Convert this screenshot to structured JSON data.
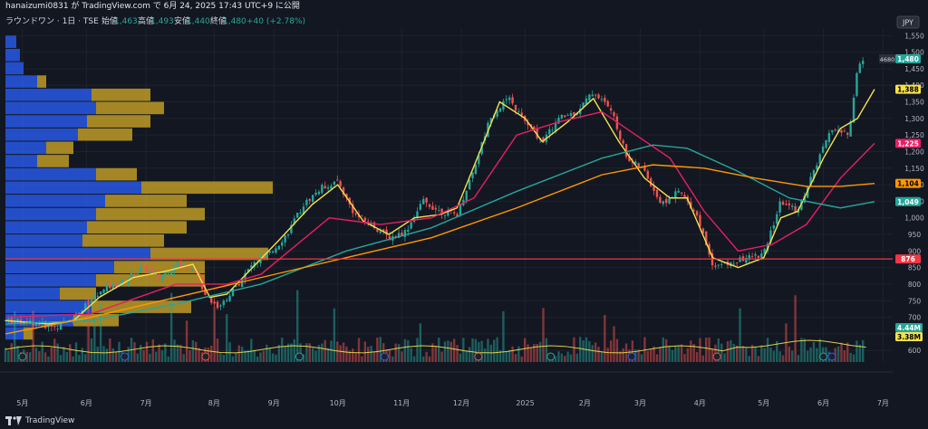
{
  "header": {
    "title_line": "hanaizumi0831 が TradingView.com で 6月 24, 2025 17:43 UTC+9 に公開",
    "symbol_line": "ラウンドワン · 1日 · TSE",
    "ohlc": {
      "open_label": "始値",
      "open": "1,463",
      "high_label": "高値",
      "high": "1,493",
      "low_label": "安値",
      "low": "1,440",
      "close_label": "終値",
      "close": "1,480",
      "change": "+40 (+2.78%)"
    },
    "currency": "JPY"
  },
  "footer": {
    "brand": "TradingView"
  },
  "colors": {
    "bg": "#131722",
    "grid": "#1e222d",
    "up": "#26a69a",
    "down": "#ef5350",
    "ma_short": "#f5e14b",
    "ma_mid": "#e91e63",
    "ma_long": "#26a69a",
    "ma_vlong": "#ff9800",
    "vp_blue": "#2962ff",
    "vp_gold": "#c9a227",
    "hline": "#f23645"
  },
  "chart_data": {
    "type": "candlestick",
    "y_axis": {
      "min": 565,
      "max": 1570,
      "ticks": [
        600,
        650,
        700,
        750,
        800,
        850,
        900,
        950,
        1000,
        1050,
        1100,
        1150,
        1200,
        1250,
        1300,
        1350,
        1400,
        1450,
        1500,
        1550
      ],
      "tick_labels": [
        "600",
        "650",
        "700",
        "750",
        "800",
        "850",
        "900",
        "950",
        "1,000",
        "1,050",
        "1,100",
        "1,150",
        "1,200",
        "1,250",
        "1,300",
        "1,350",
        "1,400",
        "1,450",
        "1,500",
        "1,550"
      ]
    },
    "x_axis": {
      "labels": [
        {
          "t": 0.02,
          "label": "5月"
        },
        {
          "t": 0.095,
          "label": "6月"
        },
        {
          "t": 0.165,
          "label": "7月"
        },
        {
          "t": 0.245,
          "label": "8月"
        },
        {
          "t": 0.315,
          "label": "9月"
        },
        {
          "t": 0.39,
          "label": "10月"
        },
        {
          "t": 0.465,
          "label": "11月"
        },
        {
          "t": 0.535,
          "label": "12月"
        },
        {
          "t": 0.61,
          "label": "2025"
        },
        {
          "t": 0.68,
          "label": "2月"
        },
        {
          "t": 0.745,
          "label": "3月"
        },
        {
          "t": 0.815,
          "label": "4月"
        },
        {
          "t": 0.89,
          "label": "5月"
        },
        {
          "t": 0.96,
          "label": "6月"
        },
        {
          "t": 1.03,
          "label": "7月"
        }
      ]
    },
    "close_path": [
      [
        0,
        690
      ],
      [
        0.03,
        685
      ],
      [
        0.06,
        670
      ],
      [
        0.08,
        700
      ],
      [
        0.1,
        750
      ],
      [
        0.12,
        790
      ],
      [
        0.14,
        810
      ],
      [
        0.16,
        850
      ],
      [
        0.18,
        820
      ],
      [
        0.2,
        860
      ],
      [
        0.22,
        850
      ],
      [
        0.235,
        770
      ],
      [
        0.25,
        730
      ],
      [
        0.27,
        790
      ],
      [
        0.29,
        860
      ],
      [
        0.31,
        890
      ],
      [
        0.33,
        950
      ],
      [
        0.35,
        1040
      ],
      [
        0.37,
        1090
      ],
      [
        0.39,
        1110
      ],
      [
        0.41,
        1010
      ],
      [
        0.43,
        980
      ],
      [
        0.45,
        940
      ],
      [
        0.47,
        960
      ],
      [
        0.49,
        1050
      ],
      [
        0.51,
        1020
      ],
      [
        0.53,
        1010
      ],
      [
        0.55,
        1150
      ],
      [
        0.57,
        1310
      ],
      [
        0.59,
        1360
      ],
      [
        0.61,
        1290
      ],
      [
        0.63,
        1230
      ],
      [
        0.65,
        1300
      ],
      [
        0.67,
        1320
      ],
      [
        0.69,
        1380
      ],
      [
        0.71,
        1330
      ],
      [
        0.73,
        1180
      ],
      [
        0.75,
        1140
      ],
      [
        0.77,
        1040
      ],
      [
        0.79,
        1080
      ],
      [
        0.81,
        1020
      ],
      [
        0.83,
        860
      ],
      [
        0.85,
        860
      ],
      [
        0.87,
        880
      ],
      [
        0.89,
        890
      ],
      [
        0.91,
        1050
      ],
      [
        0.93,
        1020
      ],
      [
        0.95,
        1150
      ],
      [
        0.97,
        1270
      ],
      [
        0.99,
        1250
      ],
      [
        1.0,
        1460
      ],
      [
        1.01,
        1480
      ]
    ],
    "moving_averages": [
      {
        "color_key": "ma_short",
        "points": [
          [
            0,
            690
          ],
          [
            0.05,
            680
          ],
          [
            0.08,
            690
          ],
          [
            0.11,
            760
          ],
          [
            0.15,
            820
          ],
          [
            0.19,
            840
          ],
          [
            0.22,
            860
          ],
          [
            0.24,
            760
          ],
          [
            0.26,
            770
          ],
          [
            0.29,
            850
          ],
          [
            0.32,
            930
          ],
          [
            0.36,
            1040
          ],
          [
            0.39,
            1100
          ],
          [
            0.42,
            990
          ],
          [
            0.45,
            950
          ],
          [
            0.48,
            1000
          ],
          [
            0.51,
            1010
          ],
          [
            0.53,
            1030
          ],
          [
            0.56,
            1220
          ],
          [
            0.58,
            1350
          ],
          [
            0.61,
            1300
          ],
          [
            0.63,
            1230
          ],
          [
            0.66,
            1290
          ],
          [
            0.69,
            1360
          ],
          [
            0.72,
            1230
          ],
          [
            0.75,
            1120
          ],
          [
            0.78,
            1060
          ],
          [
            0.8,
            1060
          ],
          [
            0.83,
            880
          ],
          [
            0.86,
            850
          ],
          [
            0.89,
            880
          ],
          [
            0.91,
            1000
          ],
          [
            0.93,
            1020
          ],
          [
            0.96,
            1180
          ],
          [
            0.98,
            1270
          ],
          [
            1.0,
            1300
          ],
          [
            1.02,
            1388
          ]
        ]
      },
      {
        "color_key": "ma_mid",
        "points": [
          [
            0,
            700
          ],
          [
            0.1,
            710
          ],
          [
            0.2,
            800
          ],
          [
            0.26,
            800
          ],
          [
            0.3,
            830
          ],
          [
            0.38,
            1000
          ],
          [
            0.44,
            980
          ],
          [
            0.5,
            1000
          ],
          [
            0.55,
            1060
          ],
          [
            0.6,
            1250
          ],
          [
            0.65,
            1290
          ],
          [
            0.7,
            1320
          ],
          [
            0.74,
            1250
          ],
          [
            0.78,
            1180
          ],
          [
            0.82,
            1020
          ],
          [
            0.86,
            900
          ],
          [
            0.9,
            920
          ],
          [
            0.94,
            980
          ],
          [
            0.98,
            1120
          ],
          [
            1.02,
            1225
          ]
        ]
      },
      {
        "color_key": "ma_long",
        "points": [
          [
            0,
            680
          ],
          [
            0.1,
            690
          ],
          [
            0.2,
            740
          ],
          [
            0.3,
            800
          ],
          [
            0.4,
            900
          ],
          [
            0.5,
            970
          ],
          [
            0.6,
            1080
          ],
          [
            0.7,
            1180
          ],
          [
            0.76,
            1220
          ],
          [
            0.8,
            1210
          ],
          [
            0.86,
            1140
          ],
          [
            0.92,
            1060
          ],
          [
            0.98,
            1030
          ],
          [
            1.02,
            1049
          ]
        ]
      },
      {
        "color_key": "ma_vlong",
        "points": [
          [
            0,
            650
          ],
          [
            0.1,
            700
          ],
          [
            0.2,
            760
          ],
          [
            0.3,
            820
          ],
          [
            0.4,
            880
          ],
          [
            0.5,
            940
          ],
          [
            0.6,
            1030
          ],
          [
            0.7,
            1130
          ],
          [
            0.76,
            1160
          ],
          [
            0.82,
            1150
          ],
          [
            0.88,
            1120
          ],
          [
            0.94,
            1095
          ],
          [
            0.98,
            1095
          ],
          [
            1.02,
            1104
          ]
        ]
      }
    ],
    "horizontal_line": 876,
    "volume_profile": [
      {
        "p": 1530,
        "blue": 12,
        "gold": 0
      },
      {
        "p": 1490,
        "blue": 16,
        "gold": 0
      },
      {
        "p": 1450,
        "blue": 20,
        "gold": 0
      },
      {
        "p": 1410,
        "blue": 35,
        "gold": 10
      },
      {
        "p": 1370,
        "blue": 95,
        "gold": 65
      },
      {
        "p": 1330,
        "blue": 100,
        "gold": 75
      },
      {
        "p": 1290,
        "blue": 90,
        "gold": 70
      },
      {
        "p": 1250,
        "blue": 80,
        "gold": 60
      },
      {
        "p": 1210,
        "blue": 45,
        "gold": 30
      },
      {
        "p": 1170,
        "blue": 35,
        "gold": 35
      },
      {
        "p": 1130,
        "blue": 100,
        "gold": 45
      },
      {
        "p": 1090,
        "blue": 150,
        "gold": 145
      },
      {
        "p": 1050,
        "blue": 110,
        "gold": 90
      },
      {
        "p": 1010,
        "blue": 100,
        "gold": 120
      },
      {
        "p": 970,
        "blue": 90,
        "gold": 110
      },
      {
        "p": 930,
        "blue": 85,
        "gold": 90
      },
      {
        "p": 890,
        "blue": 160,
        "gold": 130
      },
      {
        "p": 850,
        "blue": 120,
        "gold": 100
      },
      {
        "p": 810,
        "blue": 100,
        "gold": 120
      },
      {
        "p": 770,
        "blue": 60,
        "gold": 40
      },
      {
        "p": 730,
        "blue": 95,
        "gold": 110
      },
      {
        "p": 690,
        "blue": 75,
        "gold": 50
      },
      {
        "p": 650,
        "blue": 20,
        "gold": 10
      }
    ],
    "price_labels": [
      {
        "value": 1480,
        "label": "1,480",
        "bg": "#26a69a",
        "fg": "#ffffff",
        "extra": "4680"
      },
      {
        "value": 1388,
        "label": "1,388",
        "bg": "#f5e14b",
        "fg": "#000000"
      },
      {
        "value": 1225,
        "label": "1,225",
        "bg": "#e91e63",
        "fg": "#ffffff"
      },
      {
        "value": 1104,
        "label": "1,104",
        "bg": "#ff9800",
        "fg": "#000000"
      },
      {
        "value": 1049,
        "label": "1,049",
        "bg": "#26a69a",
        "fg": "#ffffff"
      },
      {
        "value": 876,
        "label": "876",
        "bg": "#f23645",
        "fg": "#ffffff"
      }
    ],
    "volume_labels": [
      {
        "label": "4.44M",
        "bg": "#26a69a",
        "fg": "#ffffff"
      },
      {
        "label": "3.38M",
        "bg": "#f5e14b",
        "fg": "#000000"
      }
    ]
  }
}
